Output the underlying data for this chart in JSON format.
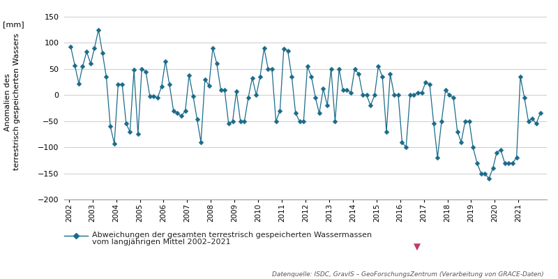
{
  "ylabel_top": "[mm]",
  "ylabel_main": "Anomalien des\nterrestrisch gespeicherten Wassers",
  "ylim": [
    -200,
    150
  ],
  "yticks": [
    -200,
    -150,
    -100,
    -50,
    0,
    50,
    100,
    150
  ],
  "line_color": "#1a6b8a",
  "marker_color": "#1a6b8a",
  "arrow_color": "#c0396b",
  "legend_label_line1": "Abweichungen der gesamten terrestrisch gespeicherten Wassermassen",
  "legend_label_line2": "vom langjährigen Mittel 2002–2021",
  "source_text": "Datenquelle: ISDC, GravIS – GeoForschungsZentrum (Verarbeitung von GRACE-Daten)",
  "background_color": "#ffffff",
  "grid_color": "#cccccc",
  "x_years": [
    2002,
    2003,
    2004,
    2005,
    2006,
    2007,
    2008,
    2009,
    2010,
    2011,
    2012,
    2013,
    2014,
    2015,
    2016,
    2017,
    2018,
    2019,
    2020,
    2021
  ],
  "time_values": [
    2002.08,
    2002.25,
    2002.42,
    2002.58,
    2002.75,
    2002.92,
    2003.08,
    2003.25,
    2003.42,
    2003.58,
    2003.75,
    2003.92,
    2004.08,
    2004.25,
    2004.42,
    2004.58,
    2004.75,
    2004.92,
    2005.08,
    2005.25,
    2005.42,
    2005.58,
    2005.75,
    2005.92,
    2006.08,
    2006.25,
    2006.42,
    2006.58,
    2006.75,
    2006.92,
    2007.08,
    2007.25,
    2007.42,
    2007.58,
    2007.75,
    2007.92,
    2008.08,
    2008.25,
    2008.42,
    2008.58,
    2008.75,
    2008.92,
    2009.08,
    2009.25,
    2009.42,
    2009.58,
    2009.75,
    2009.92,
    2010.08,
    2010.25,
    2010.42,
    2010.58,
    2010.75,
    2010.92,
    2011.08,
    2011.25,
    2011.42,
    2011.58,
    2011.75,
    2011.92,
    2012.08,
    2012.25,
    2012.42,
    2012.58,
    2012.75,
    2012.92,
    2013.08,
    2013.25,
    2013.42,
    2013.58,
    2013.75,
    2013.92,
    2014.08,
    2014.25,
    2014.42,
    2014.58,
    2014.75,
    2014.92,
    2015.08,
    2015.25,
    2015.42,
    2015.58,
    2015.75,
    2015.92,
    2016.08,
    2016.25,
    2016.42,
    2016.58,
    2016.75,
    2016.92,
    2017.08,
    2017.25,
    2017.42,
    2017.58,
    2017.75,
    2017.92,
    2018.08,
    2018.25,
    2018.42,
    2018.58,
    2018.75,
    2018.92,
    2019.08,
    2019.25,
    2019.42,
    2019.58,
    2019.75,
    2019.92,
    2020.08,
    2020.25,
    2020.42,
    2020.58,
    2020.75,
    2020.92,
    2021.08,
    2021.25,
    2021.42,
    2021.58,
    2021.75,
    2021.92
  ],
  "anomalies": [
    92,
    57,
    22,
    55,
    83,
    60,
    90,
    125,
    80,
    35,
    -60,
    -93,
    20,
    21,
    -55,
    -70,
    48,
    -75,
    50,
    45,
    -2,
    -2,
    -5,
    17,
    65,
    20,
    -30,
    -35,
    -40,
    -30,
    38,
    -2,
    -47,
    -90,
    30,
    18,
    90,
    60,
    10,
    10,
    -55,
    -50,
    7,
    -50,
    -50,
    -5,
    33,
    0,
    35,
    90,
    50,
    50,
    -50,
    -30,
    88,
    85,
    35,
    -35,
    -50,
    -50,
    55,
    35,
    -5,
    -35,
    12,
    -20,
    50,
    -50,
    50,
    10,
    10,
    5,
    50,
    40,
    0,
    0,
    -20,
    0,
    55,
    35,
    -70,
    40,
    0,
    0,
    -90,
    -100,
    0,
    0,
    5,
    5,
    25,
    20,
    -55,
    -120,
    -50,
    10,
    0,
    -5,
    -70,
    -90,
    -50,
    -50,
    -100,
    -130,
    -150,
    -150,
    -160,
    -140,
    -110,
    -105,
    -130,
    -130,
    -130,
    -120,
    35,
    -5,
    -50,
    -45,
    -55,
    -35
  ]
}
